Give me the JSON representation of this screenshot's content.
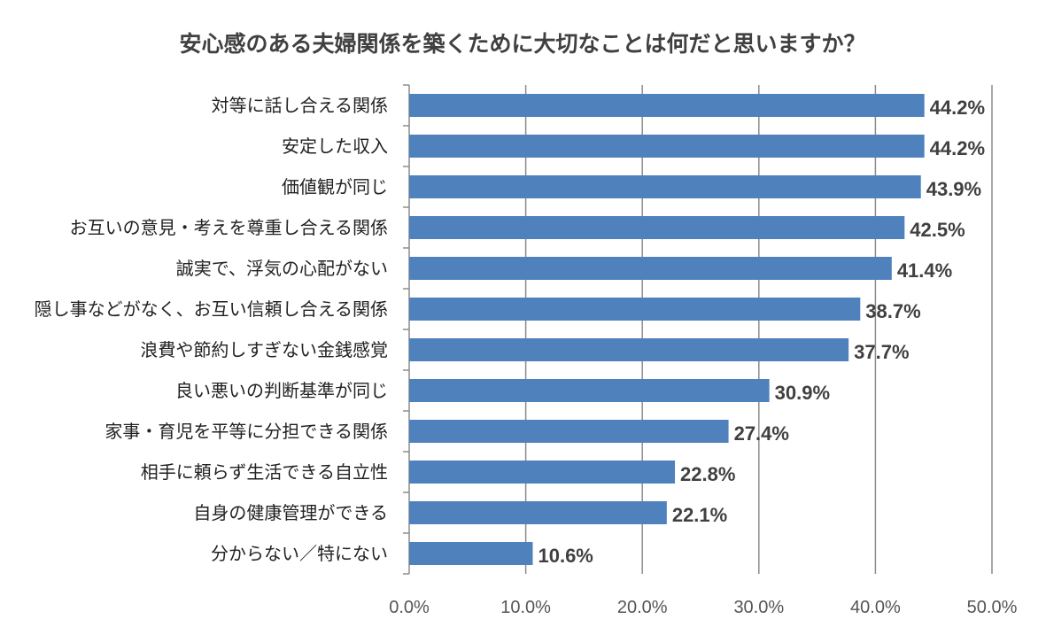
{
  "chart_data": {
    "type": "bar",
    "orientation": "horizontal",
    "title": "安心感のある夫婦関係を築くために大切なことは何だと思いますか？",
    "categories": [
      "対等に話し合える関係",
      "安定した収入",
      "価値観が同じ",
      "お互いの意見・考えを尊重し合える関係",
      "誠実で、浮気の心配がない",
      "隠し事などがなく、お互い信頼し合える関係",
      "浪費や節約しすぎない金銭感覚",
      "良い悪いの判断基準が同じ",
      "家事・育児を平等に分担できる関係",
      "相手に頼らず生活できる自立性",
      "自身の健康管理ができる",
      "分からない／特にない"
    ],
    "values": [
      44.2,
      44.2,
      43.9,
      42.5,
      41.4,
      38.7,
      37.7,
      30.9,
      27.4,
      22.8,
      22.1,
      10.6
    ],
    "value_labels": [
      "44.2%",
      "44.2%",
      "43.9%",
      "42.5%",
      "41.4%",
      "38.7%",
      "37.7%",
      "30.9%",
      "27.4%",
      "22.8%",
      "22.1%",
      "10.6%"
    ],
    "xlim": [
      0,
      50
    ],
    "xticks": [
      "0.0%",
      "10.0%",
      "20.0%",
      "30.0%",
      "40.0%",
      "50.0%"
    ],
    "xlabel": "",
    "ylabel": "",
    "grid": true,
    "bar_color": "#4f81bd"
  }
}
